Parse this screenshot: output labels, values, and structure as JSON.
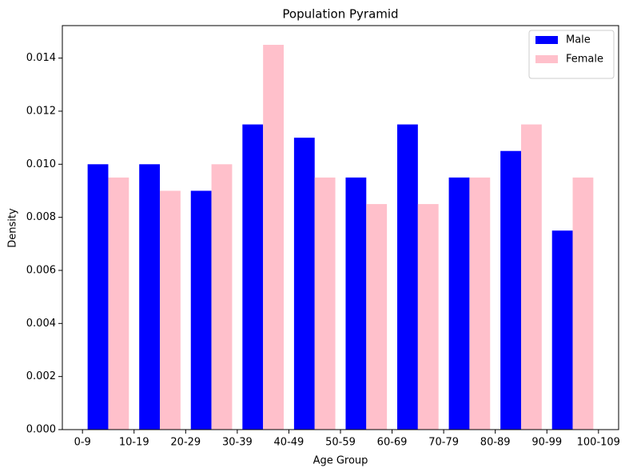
{
  "chart_data": {
    "type": "bar",
    "title": "Population Pyramid",
    "xlabel": "Age Group",
    "ylabel": "Density",
    "xlim": [
      -0.39,
      10.39
    ],
    "xticks": [
      {
        "value": 0,
        "label": "0-9"
      },
      {
        "value": 1,
        "label": "10-19"
      },
      {
        "value": 2,
        "label": "20-29"
      },
      {
        "value": 3,
        "label": "30-39"
      },
      {
        "value": 4,
        "label": "40-49"
      },
      {
        "value": 5,
        "label": "50-59"
      },
      {
        "value": 6,
        "label": "60-69"
      },
      {
        "value": 7,
        "label": "70-79"
      },
      {
        "value": 8,
        "label": "80-89"
      },
      {
        "value": 9,
        "label": "90-99"
      },
      {
        "value": 10,
        "label": "100-109"
      }
    ],
    "ylim": [
      0,
      0.015225
    ],
    "yticks": [
      {
        "value": 0,
        "label": "0.000"
      },
      {
        "value": 0.002,
        "label": "0.002"
      },
      {
        "value": 0.004,
        "label": "0.004"
      },
      {
        "value": 0.006,
        "label": "0.006"
      },
      {
        "value": 0.008,
        "label": "0.008"
      },
      {
        "value": 0.01,
        "label": "0.010"
      },
      {
        "value": 0.012,
        "label": "0.012"
      },
      {
        "value": 0.014,
        "label": "0.014"
      }
    ],
    "bar_width": 0.4,
    "legend": "upper right",
    "series": [
      {
        "name": "Male",
        "color": "#0000ff",
        "x": [
          0.3,
          1.3,
          2.3,
          3.3,
          4.3,
          5.3,
          6.3,
          7.3,
          8.3,
          9.3
        ],
        "values": [
          0.01,
          0.01,
          0.009,
          0.0115,
          0.011,
          0.0095,
          0.0115,
          0.0095,
          0.0105,
          0.0075
        ]
      },
      {
        "name": "Female",
        "color": "#ffc0cb",
        "x": [
          0.7,
          1.7,
          2.7,
          3.7,
          4.7,
          5.7,
          6.7,
          7.7,
          8.7,
          9.7
        ],
        "values": [
          0.0095,
          0.009,
          0.01,
          0.0145,
          0.0095,
          0.0085,
          0.0085,
          0.0095,
          0.0115,
          0.0095
        ]
      }
    ]
  }
}
